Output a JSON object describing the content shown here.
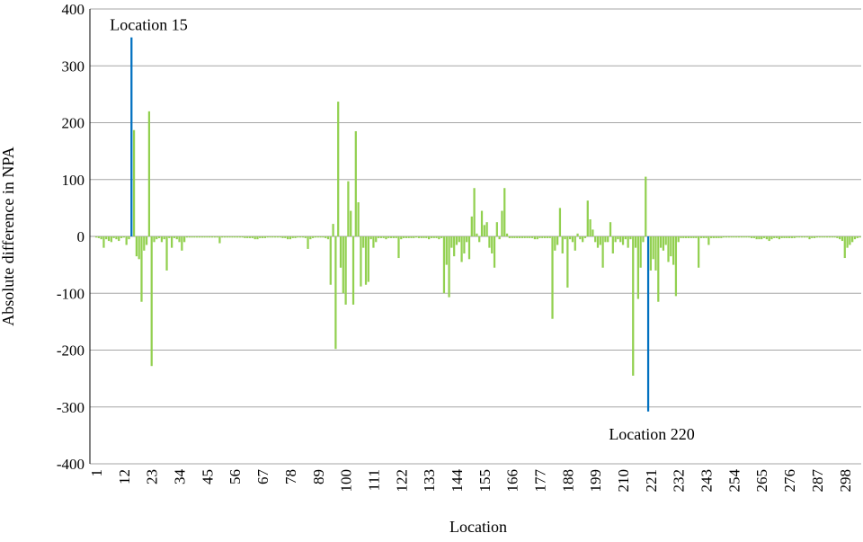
{
  "chart_data": {
    "type": "bar",
    "x_label": "Location",
    "y_label": "Absolute difference in NPA",
    "color": "#92d050",
    "annotations": [
      {
        "text": "Location 15",
        "x": 15,
        "color": "#0070c0",
        "position": "above"
      },
      {
        "text": "Location 220",
        "x": 220,
        "color": "#0070c0",
        "position": "below"
      }
    ],
    "xlim": [
      -1.5,
      304.5
    ],
    "xticks": [
      1,
      12,
      23,
      34,
      45,
      56,
      67,
      78,
      89,
      100,
      111,
      122,
      133,
      144,
      155,
      166,
      177,
      188,
      199,
      210,
      221,
      232,
      243,
      254,
      265,
      276,
      287,
      298
    ],
    "ylim": [
      -400,
      400
    ],
    "yticks": [
      -400,
      -300,
      -200,
      -100,
      0,
      100,
      200,
      300,
      400
    ],
    "grid": true,
    "x": [
      1,
      2,
      3,
      4,
      5,
      6,
      7,
      8,
      9,
      10,
      11,
      12,
      13,
      14,
      15,
      16,
      17,
      18,
      19,
      20,
      21,
      22,
      23,
      24,
      25,
      26,
      27,
      28,
      29,
      30,
      31,
      32,
      33,
      34,
      35,
      36,
      37,
      38,
      39,
      40,
      41,
      42,
      43,
      44,
      45,
      46,
      47,
      48,
      49,
      50,
      51,
      52,
      53,
      54,
      55,
      56,
      57,
      58,
      59,
      60,
      61,
      62,
      63,
      64,
      65,
      66,
      67,
      68,
      69,
      70,
      71,
      72,
      73,
      74,
      75,
      76,
      77,
      78,
      79,
      80,
      81,
      82,
      83,
      84,
      85,
      86,
      87,
      88,
      89,
      90,
      91,
      92,
      93,
      94,
      95,
      96,
      97,
      98,
      99,
      100,
      101,
      102,
      103,
      104,
      105,
      106,
      107,
      108,
      109,
      110,
      111,
      112,
      113,
      114,
      115,
      116,
      117,
      118,
      119,
      120,
      121,
      122,
      123,
      124,
      125,
      126,
      127,
      128,
      129,
      130,
      131,
      132,
      133,
      134,
      135,
      136,
      137,
      138,
      139,
      140,
      141,
      142,
      143,
      144,
      145,
      146,
      147,
      148,
      149,
      150,
      151,
      152,
      153,
      154,
      155,
      156,
      157,
      158,
      159,
      160,
      161,
      162,
      163,
      164,
      165,
      166,
      167,
      168,
      169,
      170,
      171,
      172,
      173,
      174,
      175,
      176,
      177,
      178,
      179,
      180,
      181,
      182,
      183,
      184,
      185,
      186,
      187,
      188,
      189,
      190,
      191,
      192,
      193,
      194,
      195,
      196,
      197,
      198,
      199,
      200,
      201,
      202,
      203,
      204,
      205,
      206,
      207,
      208,
      209,
      210,
      211,
      212,
      213,
      214,
      215,
      216,
      217,
      218,
      219,
      220,
      221,
      222,
      223,
      224,
      225,
      226,
      227,
      228,
      229,
      230,
      231,
      232,
      233,
      234,
      235,
      236,
      237,
      238,
      239,
      240,
      241,
      242,
      243,
      244,
      245,
      246,
      247,
      248,
      249,
      250,
      251,
      252,
      253,
      254,
      255,
      256,
      257,
      258,
      259,
      260,
      261,
      262,
      263,
      264,
      265,
      266,
      267,
      268,
      269,
      270,
      271,
      272,
      273,
      274,
      275,
      276,
      277,
      278,
      279,
      280,
      281,
      282,
      283,
      284,
      285,
      286,
      287,
      288,
      289,
      290,
      291,
      292,
      293,
      294,
      295,
      296,
      297,
      298,
      299,
      300,
      301,
      302,
      303,
      304
    ],
    "values": [
      -2,
      -3,
      -5,
      -20,
      -5,
      -8,
      -10,
      -3,
      -5,
      -8,
      -3,
      -2,
      -15,
      -5,
      350,
      187,
      -35,
      -40,
      -115,
      -25,
      -15,
      220,
      -228,
      -10,
      -5,
      -3,
      -10,
      -5,
      -60,
      -3,
      -20,
      -3,
      -5,
      -10,
      -25,
      -10,
      -2,
      -2,
      -2,
      -2,
      -2,
      -2,
      -2,
      -2,
      -2,
      -2,
      -2,
      -2,
      -2,
      -12,
      -2,
      -2,
      -2,
      -2,
      -2,
      -2,
      -2,
      -2,
      -2,
      -3,
      -3,
      -3,
      -3,
      -5,
      -5,
      -3,
      -3,
      -3,
      -2,
      -2,
      -2,
      -2,
      -2,
      -2,
      -3,
      -3,
      -5,
      -5,
      -3,
      -3,
      -2,
      -2,
      -2,
      -3,
      -22,
      -5,
      -3,
      -2,
      -2,
      -2,
      -2,
      -3,
      -5,
      -85,
      22,
      -198,
      237,
      -55,
      -100,
      -120,
      97,
      45,
      -120,
      185,
      60,
      -88,
      -20,
      -85,
      -80,
      -5,
      -20,
      -10,
      -3,
      -3,
      -3,
      -5,
      -3,
      -3,
      -3,
      -3,
      -38,
      -5,
      -3,
      -3,
      -3,
      -3,
      -3,
      -2,
      -3,
      -3,
      -3,
      -3,
      -5,
      -3,
      -3,
      -3,
      -5,
      -3,
      -100,
      -50,
      -107,
      -20,
      -35,
      -15,
      -10,
      -45,
      -30,
      -10,
      -40,
      35,
      85,
      5,
      -10,
      45,
      20,
      25,
      -20,
      -30,
      -55,
      25,
      -5,
      45,
      85,
      5,
      -3,
      -3,
      -3,
      -3,
      -3,
      -3,
      -3,
      -3,
      -3,
      -3,
      -5,
      -5,
      -3,
      -3,
      -3,
      -3,
      -3,
      -145,
      -25,
      -15,
      50,
      -30,
      -5,
      -90,
      -5,
      -10,
      -25,
      5,
      -5,
      -10,
      -3,
      63,
      30,
      12,
      -10,
      -20,
      -15,
      -55,
      -10,
      -10,
      25,
      -30,
      -10,
      -5,
      -10,
      -15,
      -5,
      -20,
      -5,
      -245,
      -20,
      -110,
      -55,
      -10,
      105,
      -308,
      -60,
      -40,
      -60,
      -115,
      -20,
      -25,
      -15,
      -45,
      -35,
      -50,
      -105,
      -10,
      -3,
      -3,
      -3,
      -3,
      -3,
      -3,
      -3,
      -55,
      -3,
      -3,
      -3,
      -15,
      -3,
      -3,
      -3,
      -3,
      -3,
      -2,
      -2,
      -2,
      -2,
      -2,
      -2,
      -2,
      -2,
      -2,
      -2,
      -2,
      -3,
      -3,
      -5,
      -5,
      -5,
      -3,
      -5,
      -8,
      -5,
      -3,
      -3,
      -5,
      -3,
      -3,
      -3,
      -3,
      -3,
      -3,
      -2,
      -2,
      -2,
      -2,
      -2,
      -5,
      -3,
      -3,
      -2,
      -2,
      -2,
      -2,
      -2,
      -2,
      -2,
      -2,
      -3,
      -5,
      -8,
      -38,
      -20,
      -15,
      -10,
      -5,
      -3,
      -2
    ]
  }
}
